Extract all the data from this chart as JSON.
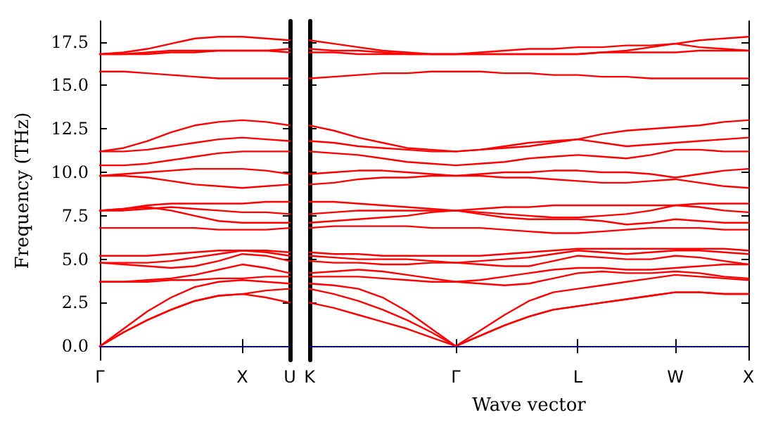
{
  "chart_data": [
    {
      "type": "line",
      "ylabel": "Frequency (THz)",
      "categories": [
        "Γ",
        null,
        null,
        null,
        null,
        null,
        "X",
        null,
        "U"
      ],
      "ylim": [
        -0.8,
        18.7
      ],
      "yticks": [
        {
          "value": 0,
          "label": "0.0"
        },
        {
          "value": 2.5,
          "label": "2.5"
        },
        {
          "value": 5,
          "label": "5.0"
        },
        {
          "value": 7.5,
          "label": "7.5"
        },
        {
          "value": 10,
          "label": "10.0"
        },
        {
          "value": 12.5,
          "label": "12.5"
        },
        {
          "value": 15,
          "label": "15.0"
        },
        {
          "value": 17.5,
          "label": "17.5"
        }
      ],
      "grid": false,
      "marker": "none",
      "line_style": "solid",
      "ref_lines": [
        {
          "axis": "y",
          "value": 0,
          "color": "#0000ff",
          "line_style": "dotted"
        }
      ],
      "series": [
        {
          "color": "#ff0000",
          "values": [
            0,
            0.8,
            1.5,
            2.1,
            2.6,
            2.9,
            3.0,
            2.8,
            2.5
          ]
        },
        {
          "color": "#ff0000",
          "values": [
            0,
            0.8,
            1.5,
            2.1,
            2.6,
            2.9,
            3.0,
            3.2,
            3.3
          ]
        },
        {
          "color": "#ff0000",
          "values": [
            0,
            1.0,
            2.0,
            2.8,
            3.4,
            3.7,
            3.8,
            3.7,
            3.6
          ]
        },
        {
          "color": "#ff0000",
          "values": [
            3.7,
            3.7,
            3.7,
            3.8,
            3.8,
            3.9,
            3.9,
            4.0,
            4.0
          ]
        },
        {
          "color": "#ff0000",
          "values": [
            3.7,
            3.7,
            3.8,
            3.9,
            4.1,
            4.4,
            4.7,
            4.5,
            4.2
          ]
        },
        {
          "color": "#ff0000",
          "values": [
            4.8,
            4.7,
            4.6,
            4.5,
            4.6,
            4.9,
            5.3,
            5.2,
            4.9
          ]
        },
        {
          "color": "#ff0000",
          "values": [
            4.8,
            4.8,
            4.8,
            4.9,
            5.1,
            5.3,
            5.5,
            5.4,
            5.2
          ]
        },
        {
          "color": "#ff0000",
          "values": [
            5.2,
            5.2,
            5.2,
            5.3,
            5.4,
            5.5,
            5.5,
            5.5,
            5.4
          ]
        },
        {
          "color": "#ff0000",
          "values": [
            6.8,
            6.8,
            6.8,
            6.8,
            6.8,
            6.7,
            6.7,
            6.7,
            6.8
          ]
        },
        {
          "color": "#ff0000",
          "values": [
            7.8,
            7.9,
            8.0,
            7.8,
            7.5,
            7.2,
            7.1,
            7.1,
            7.1
          ]
        },
        {
          "color": "#ff0000",
          "values": [
            7.8,
            7.8,
            7.9,
            8.0,
            7.9,
            7.8,
            7.7,
            7.7,
            7.6
          ]
        },
        {
          "color": "#ff0000",
          "values": [
            7.8,
            7.9,
            8.1,
            8.2,
            8.2,
            8.2,
            8.2,
            8.3,
            8.3
          ]
        },
        {
          "color": "#ff0000",
          "values": [
            9.8,
            9.8,
            9.7,
            9.5,
            9.3,
            9.2,
            9.1,
            9.2,
            9.3
          ]
        },
        {
          "color": "#ff0000",
          "values": [
            9.8,
            9.9,
            10.0,
            10.1,
            10.2,
            10.2,
            10.2,
            10.1,
            9.9
          ]
        },
        {
          "color": "#ff0000",
          "values": [
            10.4,
            10.4,
            10.5,
            10.7,
            10.9,
            11.1,
            11.2,
            11.2,
            11.2
          ]
        },
        {
          "color": "#ff0000",
          "values": [
            11.2,
            11.2,
            11.3,
            11.5,
            11.7,
            11.9,
            12.0,
            11.9,
            11.8
          ]
        },
        {
          "color": "#ff0000",
          "values": [
            11.2,
            11.4,
            11.8,
            12.3,
            12.7,
            12.9,
            13.0,
            12.9,
            12.7
          ]
        },
        {
          "color": "#ff0000",
          "values": [
            15.8,
            15.8,
            15.7,
            15.6,
            15.5,
            15.4,
            15.4,
            15.4,
            15.4
          ]
        },
        {
          "color": "#ff0000",
          "values": [
            16.8,
            16.8,
            16.8,
            16.9,
            16.9,
            17.0,
            17.0,
            17.0,
            16.9
          ]
        },
        {
          "color": "#ff0000",
          "values": [
            16.8,
            16.8,
            16.9,
            17.0,
            17.0,
            17.0,
            17.0,
            17.0,
            17.1
          ]
        },
        {
          "color": "#ff0000",
          "values": [
            16.8,
            16.9,
            17.1,
            17.4,
            17.7,
            17.8,
            17.8,
            17.7,
            17.6
          ]
        }
      ]
    },
    {
      "type": "line",
      "xlabel": "Wave vector",
      "categories": [
        "K",
        null,
        null,
        null,
        null,
        null,
        "Γ",
        null,
        null,
        null,
        null,
        "L",
        null,
        null,
        null,
        "W",
        null,
        null,
        "X"
      ],
      "ylim": [
        -0.8,
        18.7
      ],
      "yticks": [
        0,
        2.5,
        5,
        7.5,
        10,
        12.5,
        15,
        17.5
      ],
      "tick_labels": "x",
      "grid": false,
      "marker": "none",
      "line_style": "solid",
      "ref_lines": [
        {
          "axis": "y",
          "value": 0,
          "color": "#0000ff",
          "line_style": "dotted"
        }
      ],
      "series": [
        {
          "color": "#ff0000",
          "values": [
            2.5,
            2.2,
            1.8,
            1.4,
            1.0,
            0.5,
            0,
            0.6,
            1.2,
            1.7,
            2.1,
            2.3,
            2.5,
            2.7,
            2.9,
            3.1,
            3.1,
            3.0,
            3.0
          ]
        },
        {
          "color": "#ff0000",
          "values": [
            3.3,
            3.0,
            2.6,
            2.1,
            1.5,
            0.8,
            0,
            0.6,
            1.2,
            1.7,
            2.1,
            2.3,
            2.5,
            2.7,
            2.9,
            3.1,
            3.1,
            3.0,
            3.0
          ]
        },
        {
          "color": "#ff0000",
          "values": [
            3.6,
            3.5,
            3.3,
            2.8,
            2.0,
            1.0,
            0,
            0.9,
            1.8,
            2.6,
            3.1,
            3.3,
            3.5,
            3.7,
            3.9,
            4.1,
            4.0,
            3.9,
            3.8
          ]
        },
        {
          "color": "#ff0000",
          "values": [
            4.0,
            4.0,
            4.0,
            3.9,
            3.8,
            3.7,
            3.7,
            3.6,
            3.5,
            3.6,
            3.9,
            4.2,
            4.3,
            4.2,
            4.2,
            4.3,
            4.2,
            4.0,
            3.9
          ]
        },
        {
          "color": "#ff0000",
          "values": [
            4.2,
            4.3,
            4.4,
            4.3,
            4.1,
            3.9,
            3.7,
            3.8,
            4.0,
            4.2,
            4.4,
            4.5,
            4.5,
            4.4,
            4.4,
            4.5,
            4.6,
            4.7,
            4.7
          ]
        },
        {
          "color": "#ff0000",
          "values": [
            4.9,
            4.8,
            4.8,
            4.7,
            4.7,
            4.8,
            4.8,
            4.7,
            4.6,
            4.6,
            4.9,
            5.2,
            5.1,
            5.0,
            5.0,
            5.2,
            5.1,
            4.9,
            4.7
          ]
        },
        {
          "color": "#ff0000",
          "values": [
            5.2,
            5.1,
            5.0,
            5.0,
            5.0,
            4.9,
            4.8,
            4.9,
            5.0,
            5.1,
            5.3,
            5.5,
            5.4,
            5.3,
            5.4,
            5.5,
            5.5,
            5.4,
            5.3
          ]
        },
        {
          "color": "#ff0000",
          "values": [
            5.4,
            5.3,
            5.3,
            5.2,
            5.2,
            5.2,
            5.2,
            5.2,
            5.3,
            5.4,
            5.5,
            5.6,
            5.6,
            5.6,
            5.6,
            5.6,
            5.6,
            5.6,
            5.5
          ]
        },
        {
          "color": "#ff0000",
          "values": [
            6.8,
            6.9,
            6.9,
            6.9,
            6.9,
            6.8,
            6.8,
            6.8,
            6.7,
            6.6,
            6.5,
            6.5,
            6.6,
            6.7,
            6.8,
            6.8,
            6.8,
            6.7,
            6.7
          ]
        },
        {
          "color": "#ff0000",
          "values": [
            7.1,
            7.2,
            7.3,
            7.4,
            7.5,
            7.7,
            7.8,
            7.6,
            7.4,
            7.3,
            7.3,
            7.3,
            7.2,
            7.0,
            7.1,
            7.3,
            7.2,
            7.1,
            7.1
          ]
        },
        {
          "color": "#ff0000",
          "values": [
            7.6,
            7.7,
            7.8,
            7.8,
            7.8,
            7.8,
            7.8,
            7.7,
            7.6,
            7.5,
            7.4,
            7.4,
            7.5,
            7.6,
            7.8,
            8.1,
            8.0,
            7.8,
            7.7
          ]
        },
        {
          "color": "#ff0000",
          "values": [
            8.3,
            8.3,
            8.2,
            8.1,
            8.0,
            7.9,
            7.8,
            7.9,
            8.0,
            8.0,
            8.1,
            8.1,
            8.1,
            8.1,
            8.1,
            8.1,
            8.2,
            8.2,
            8.2
          ]
        },
        {
          "color": "#ff0000",
          "values": [
            9.3,
            9.4,
            9.6,
            9.7,
            9.7,
            9.8,
            9.8,
            9.8,
            9.7,
            9.7,
            9.6,
            9.5,
            9.4,
            9.4,
            9.5,
            9.6,
            9.4,
            9.2,
            9.1
          ]
        },
        {
          "color": "#ff0000",
          "values": [
            9.9,
            10.0,
            10.1,
            10.1,
            10.0,
            9.9,
            9.8,
            9.9,
            10.0,
            10.0,
            10.1,
            10.1,
            10.0,
            10.0,
            9.9,
            9.7,
            9.9,
            10.1,
            10.2
          ]
        },
        {
          "color": "#ff0000",
          "values": [
            11.2,
            11.1,
            11.0,
            10.8,
            10.6,
            10.5,
            10.4,
            10.5,
            10.6,
            10.8,
            10.9,
            11.0,
            10.9,
            10.8,
            11.0,
            11.3,
            11.3,
            11.2,
            11.2
          ]
        },
        {
          "color": "#ff0000",
          "values": [
            11.8,
            11.7,
            11.5,
            11.4,
            11.3,
            11.2,
            11.2,
            11.3,
            11.4,
            11.5,
            11.7,
            11.9,
            11.7,
            11.5,
            11.6,
            11.7,
            11.8,
            11.9,
            12.0
          ]
        },
        {
          "color": "#ff0000",
          "values": [
            12.7,
            12.4,
            12.0,
            11.7,
            11.4,
            11.3,
            11.2,
            11.3,
            11.5,
            11.7,
            11.8,
            11.9,
            12.2,
            12.4,
            12.5,
            12.6,
            12.7,
            12.9,
            13.0
          ]
        },
        {
          "color": "#ff0000",
          "values": [
            15.4,
            15.5,
            15.6,
            15.7,
            15.7,
            15.8,
            15.8,
            15.8,
            15.7,
            15.7,
            15.6,
            15.6,
            15.5,
            15.5,
            15.4,
            15.4,
            15.4,
            15.4,
            15.4
          ]
        },
        {
          "color": "#ff0000",
          "values": [
            16.9,
            16.9,
            16.8,
            16.8,
            16.8,
            16.8,
            16.8,
            16.8,
            16.8,
            16.8,
            16.8,
            16.8,
            16.9,
            16.9,
            16.9,
            16.9,
            17.0,
            17.0,
            17.0
          ]
        },
        {
          "color": "#ff0000",
          "values": [
            17.1,
            17.0,
            17.0,
            16.9,
            16.8,
            16.8,
            16.8,
            16.8,
            16.8,
            16.8,
            16.8,
            16.8,
            16.9,
            17.0,
            17.2,
            17.4,
            17.2,
            17.1,
            17.0
          ]
        },
        {
          "color": "#ff0000",
          "values": [
            17.6,
            17.4,
            17.2,
            17.0,
            16.9,
            16.8,
            16.8,
            16.9,
            17.0,
            17.1,
            17.1,
            17.2,
            17.2,
            17.3,
            17.3,
            17.4,
            17.6,
            17.7,
            17.8
          ]
        }
      ]
    }
  ]
}
